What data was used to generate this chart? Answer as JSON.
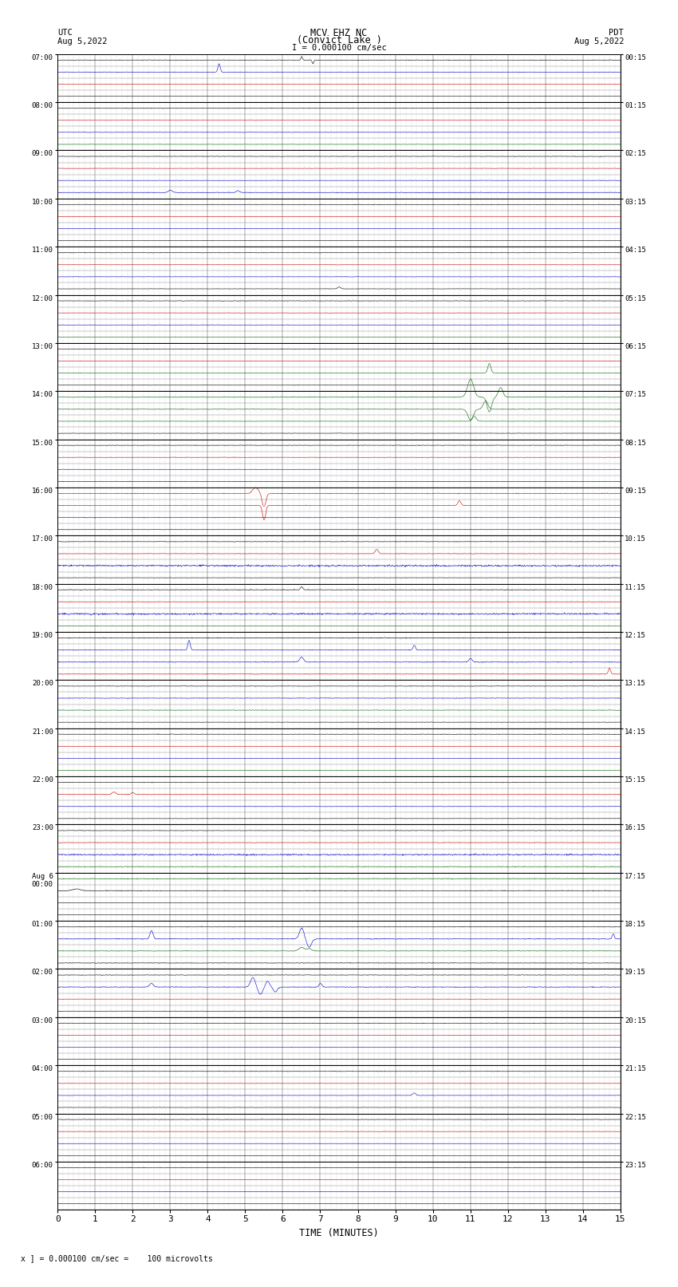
{
  "title_line1": "MCV EHZ NC",
  "title_line2": "(Convict Lake )",
  "scale_label": "I = 0.000100 cm/sec",
  "left_label": "UTC",
  "left_date": "Aug 5,2022",
  "right_label": "PDT",
  "right_date": "Aug 5,2022",
  "bottom_label": "TIME (MINUTES)",
  "bottom_note": "x ] = 0.000100 cm/sec =    100 microvolts",
  "utc_labels": [
    "07:00",
    "08:00",
    "09:00",
    "10:00",
    "11:00",
    "12:00",
    "13:00",
    "14:00",
    "15:00",
    "16:00",
    "17:00",
    "18:00",
    "19:00",
    "20:00",
    "21:00",
    "22:00",
    "23:00",
    "Aug 6\n00:00",
    "01:00",
    "02:00",
    "03:00",
    "04:00",
    "05:00",
    "06:00"
  ],
  "pdt_labels": [
    "00:15",
    "01:15",
    "02:15",
    "03:15",
    "04:15",
    "05:15",
    "06:15",
    "07:15",
    "08:15",
    "09:15",
    "10:15",
    "11:15",
    "12:15",
    "13:15",
    "14:15",
    "15:15",
    "16:15",
    "17:15",
    "18:15",
    "19:15",
    "20:15",
    "21:15",
    "22:15",
    "23:15"
  ],
  "n_hours": 24,
  "subrows_per_hour": 4,
  "x_min": 0,
  "x_max": 15,
  "x_ticks": [
    0,
    1,
    2,
    3,
    4,
    5,
    6,
    7,
    8,
    9,
    10,
    11,
    12,
    13,
    14,
    15
  ],
  "background_color": "#ffffff",
  "trace_color_black": "#000000",
  "trace_color_red": "#cc0000",
  "trace_color_blue": "#0000cc",
  "trace_color_green": "#006600",
  "grid_color_major": "#000000",
  "grid_color_minor": "#aaaaaa",
  "noise_scale": 0.035
}
